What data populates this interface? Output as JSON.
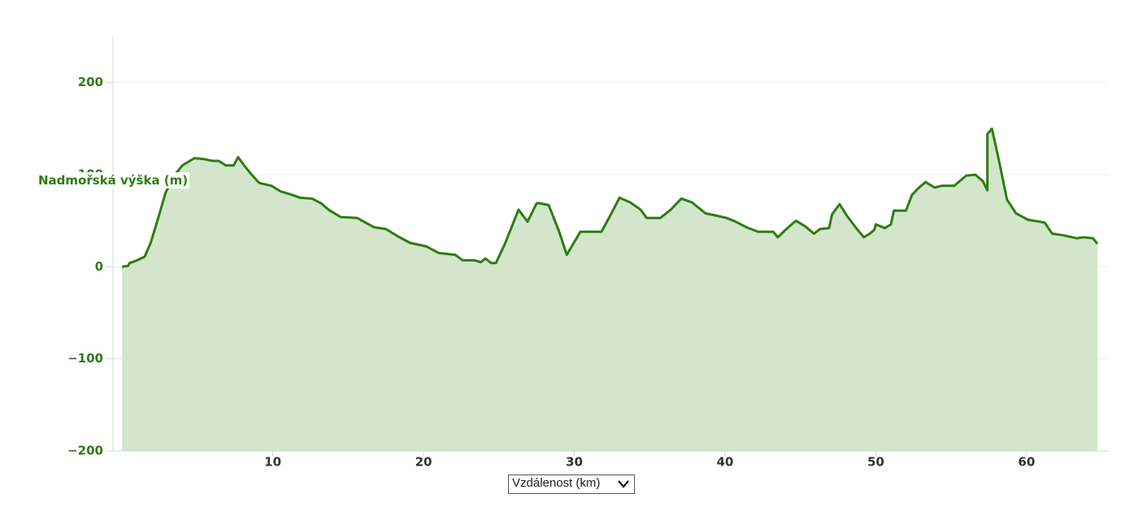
{
  "chart_data": {
    "type": "area",
    "y_label": "Nadmořská výška (m)",
    "x_label": "Vzdálenost (km)",
    "color": "#2e7d12",
    "fill": "#d3e6cb",
    "xlim": [
      -0.6,
      65.4
    ],
    "xticks": [
      10,
      20,
      30,
      40,
      50,
      60
    ],
    "ylim": [
      -200,
      250
    ],
    "yticks": [
      {
        "value": -200,
        "label": "−200"
      },
      {
        "value": -100,
        "label": "−100"
      },
      0,
      100,
      200
    ],
    "grid": true,
    "x": [
      0,
      0.4,
      0.5,
      1,
      1.5,
      1.9,
      2.4,
      2.9,
      3.5,
      4,
      4.4,
      4.8,
      5.4,
      6,
      6.4,
      6.9,
      7.4,
      7.7,
      8.1,
      8.6,
      9.1,
      9.9,
      10.5,
      11.3,
      11.8,
      12.6,
      13.2,
      13.7,
      14.5,
      15.6,
      16.7,
      17.5,
      18.3,
      19.1,
      20.2,
      21,
      22.1,
      22.6,
      23.4,
      23.8,
      24.1,
      24.5,
      24.8,
      25.4,
      26.3,
      26.9,
      27.5,
      27.7,
      28.3,
      29,
      29.5,
      30.4,
      31.8,
      32.3,
      33,
      33.7,
      34.4,
      34.8,
      35.7,
      36.4,
      37.1,
      37.8,
      38.7,
      39.3,
      40.1,
      40.7,
      41.4,
      42.2,
      43.2,
      43.5,
      44,
      44.7,
      45.3,
      45.9,
      46.3,
      46.9,
      47.1,
      47.6,
      48.1,
      48.7,
      49.2,
      49.6,
      49.9,
      50,
      50.6,
      51,
      51.2,
      52,
      52.4,
      52.8,
      53.3,
      53.9,
      54.4,
      55.2,
      56,
      56.6,
      57.1,
      57.4,
      57.4,
      57.7,
      58.2,
      58.7,
      59.3,
      60.1,
      61.2,
      61.7,
      62.5,
      63.3,
      63.8,
      64.4,
      64.7
    ],
    "values": [
      0,
      1,
      4,
      7,
      11,
      26,
      53,
      81,
      100,
      110,
      114,
      118,
      117,
      115,
      115,
      110,
      110,
      119,
      110,
      100,
      91,
      88,
      82,
      78,
      75,
      74,
      69,
      62,
      54,
      53,
      43,
      41,
      33,
      26,
      22,
      15,
      13,
      7,
      7,
      5,
      9,
      4,
      4,
      25,
      62,
      49,
      69,
      69,
      67,
      38,
      13,
      38,
      38,
      53,
      75,
      70,
      62,
      53,
      53,
      62,
      74,
      70,
      58,
      56,
      53,
      49,
      43,
      38,
      38,
      32,
      40,
      50,
      44,
      36,
      41,
      42,
      57,
      68,
      55,
      42,
      32,
      36,
      40,
      46,
      42,
      46,
      61,
      61,
      78,
      85,
      92,
      86,
      88,
      88,
      99,
      100,
      93,
      83,
      144,
      150,
      113,
      73,
      58,
      51,
      48,
      36,
      34,
      31,
      32,
      31,
      25
    ]
  }
}
